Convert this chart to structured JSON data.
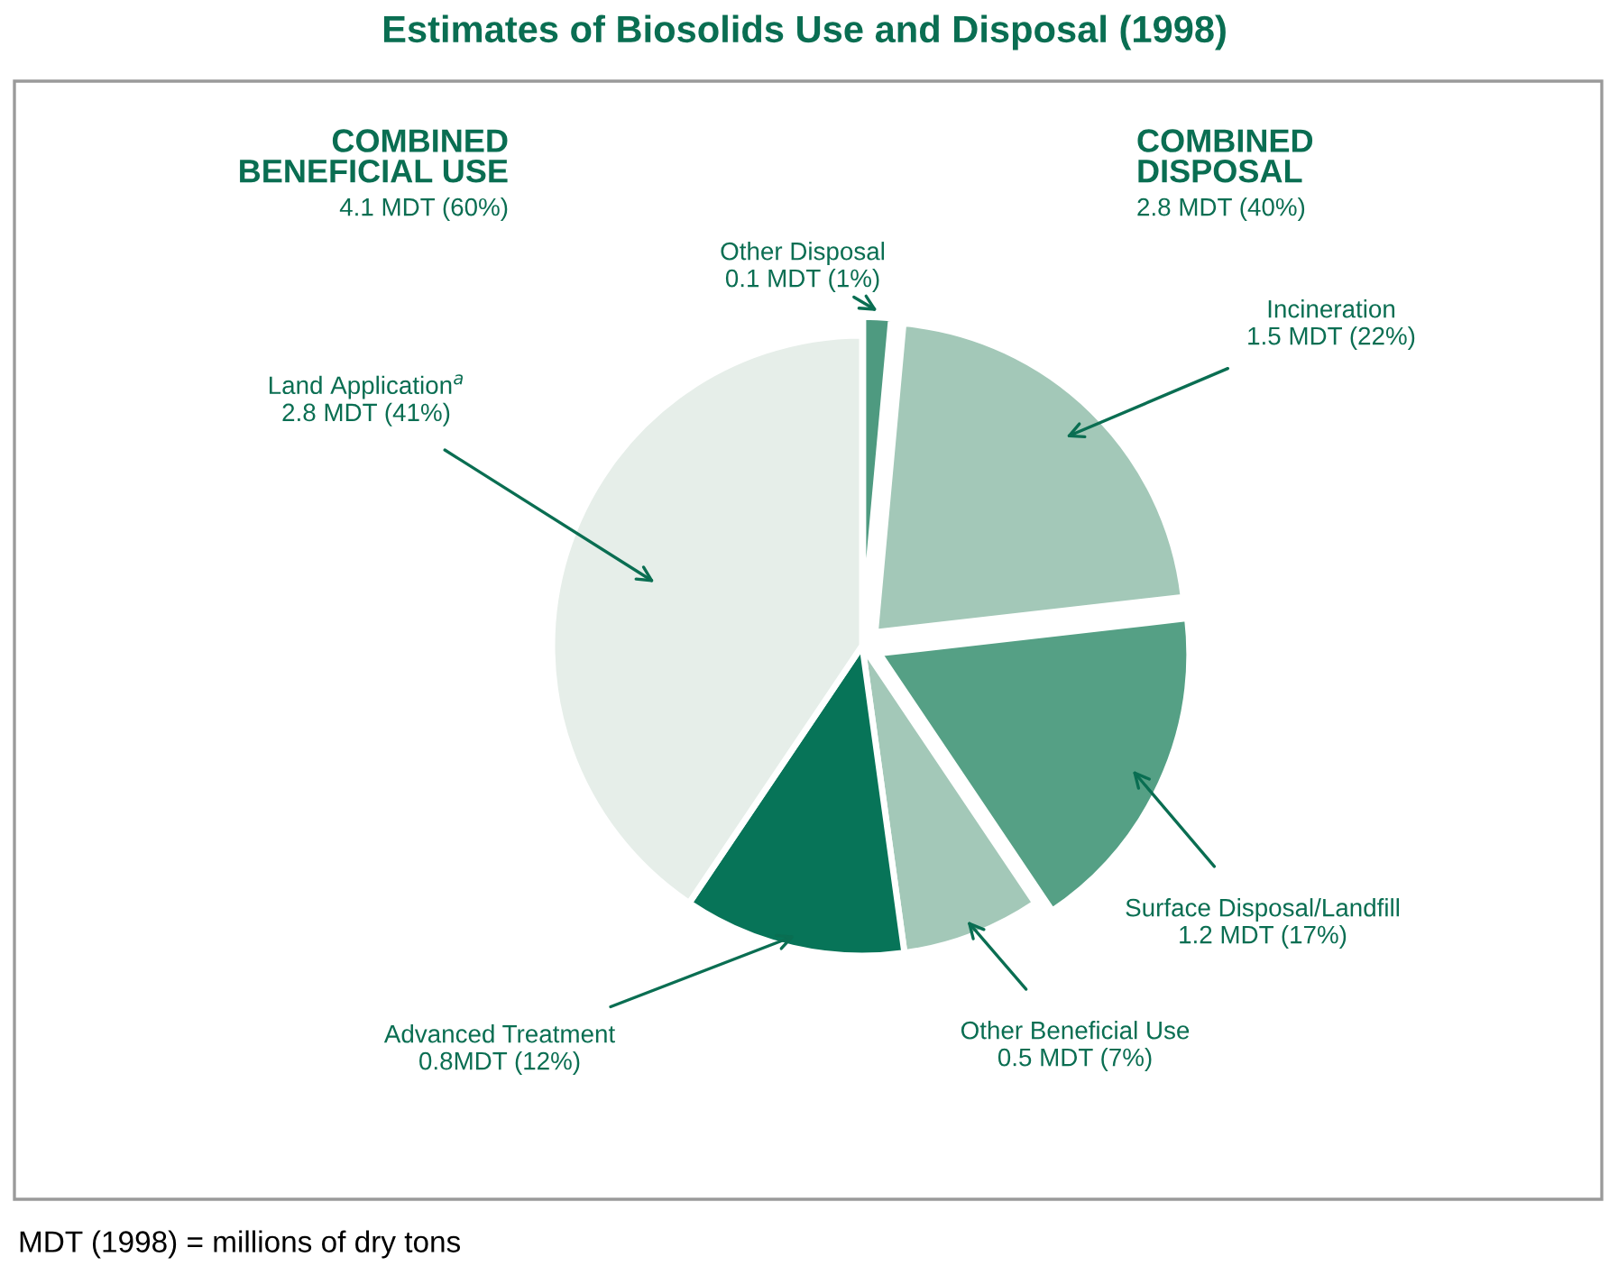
{
  "chart_data": {
    "type": "pie",
    "title": "Estimates of Biosolids Use and Disposal (1998)",
    "categories": [
      "Other Disposal",
      "Incineration",
      "Surface Disposal/Landfill",
      "Other Beneficial Use",
      "Advanced Treatment",
      "Land Application$^{a}$"
    ],
    "values": [
      0.1,
      1.5,
      1.2,
      0.5,
      0.8,
      2.8
    ],
    "value_labels": [
      "0.1 MDT (1%)",
      "1.5 MDT (22%)",
      "1.2 MDT (17%)",
      "0.5 MDT (7%)",
      "0.8MDT (12%)",
      "2.8 MDT (41%)"
    ],
    "colors": [
      "#4e9a80",
      "#a3c8b8",
      "#55a085",
      "#a3c8b8",
      "#077458",
      "#e6eee9"
    ],
    "annotations": [
      "COMBINED\nBENEFICIAL USE",
      "4.1 MDT (60%)",
      "COMBINED\nDISPOSAL",
      "2.8 MDT (40%)",
      "MDT (1998) = millions of dry tons"
    ]
  }
}
